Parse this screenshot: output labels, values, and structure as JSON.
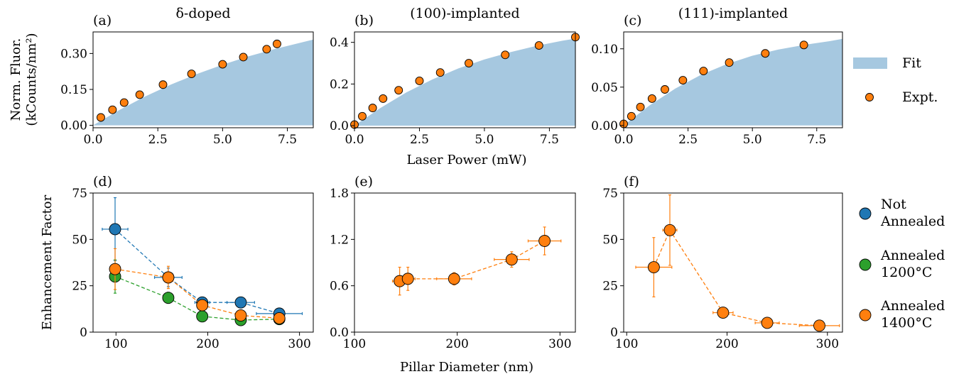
{
  "figure": {
    "shared_xlabel_top": "Laser Power (mW)",
    "shared_xlabel_bottom": "Pillar Diameter (nm)",
    "ylabel_top_line1": "Norm. Fluor.",
    "ylabel_top_line2": "(kCounts/nm²)",
    "ylabel_bottom": "Enhancement Factor",
    "colors": {
      "fit": "#a6c8e0",
      "orange": "#ff7f0e",
      "blue": "#1f77b4",
      "green": "#2ca02c"
    },
    "legend_top": {
      "fit_label": "Fit",
      "expt_label": "Expt."
    },
    "legend_bottom": [
      {
        "line1": "Not",
        "line2": "Annealed",
        "color": "#1f77b4"
      },
      {
        "line1": "Annealed",
        "line2": "1200°C",
        "color": "#2ca02c"
      },
      {
        "line1": "Annealed",
        "line2": "1400°C",
        "color": "#ff7f0e"
      }
    ]
  },
  "chart_data": [
    {
      "panel": "(a)",
      "title": "δ-doped",
      "type": "scatter",
      "xlim": [
        0,
        8.5
      ],
      "ylim": [
        -0.01,
        0.39
      ],
      "xticks": [
        "0.0",
        "2.5",
        "5.0",
        "7.5"
      ],
      "xtick_values": [
        0,
        2.5,
        5.0,
        7.5
      ],
      "yticks": [
        "0.00",
        "0.15",
        "0.30"
      ],
      "ytick_values": [
        0,
        0.15,
        0.3
      ],
      "fit": {
        "x": [
          0,
          1,
          2,
          3,
          4,
          5,
          6,
          7,
          8,
          8.5
        ],
        "y": [
          0,
          0.063,
          0.12,
          0.17,
          0.214,
          0.253,
          0.288,
          0.318,
          0.345,
          0.358
        ]
      },
      "expt": {
        "x": [
          0.3,
          0.75,
          1.2,
          1.8,
          2.7,
          3.8,
          5.0,
          5.8,
          6.7,
          7.1
        ],
        "y": [
          0.033,
          0.065,
          0.095,
          0.128,
          0.17,
          0.215,
          0.255,
          0.285,
          0.318,
          0.34
        ]
      }
    },
    {
      "panel": "(b)",
      "title": "(100)-implanted",
      "type": "scatter",
      "xlim": [
        0,
        8.5
      ],
      "ylim": [
        -0.01,
        0.45
      ],
      "xticks": [
        "0.0",
        "2.5",
        "5.0",
        "7.5"
      ],
      "xtick_values": [
        0,
        2.5,
        5.0,
        7.5
      ],
      "yticks": [
        "0.0",
        "0.2",
        "0.4"
      ],
      "ytick_values": [
        0,
        0.2,
        0.4
      ],
      "fit": {
        "x": [
          0,
          1,
          2,
          3,
          4,
          5,
          6,
          7,
          8,
          8.5
        ],
        "y": [
          0,
          0.085,
          0.16,
          0.222,
          0.275,
          0.318,
          0.353,
          0.383,
          0.408,
          0.418
        ]
      },
      "expt": {
        "x": [
          0.0,
          0.3,
          0.7,
          1.1,
          1.7,
          2.5,
          3.3,
          4.4,
          5.8,
          7.1,
          8.5
        ],
        "y": [
          0.005,
          0.045,
          0.085,
          0.13,
          0.17,
          0.215,
          0.255,
          0.3,
          0.34,
          0.385,
          0.425
        ]
      }
    },
    {
      "panel": "(c)",
      "title": "(111)-implanted",
      "type": "scatter",
      "xlim": [
        0,
        8.5
      ],
      "ylim": [
        -0.003,
        0.122
      ],
      "xticks": [
        "0.0",
        "2.5",
        "5.0",
        "7.5"
      ],
      "xtick_values": [
        0,
        2.5,
        5.0,
        7.5
      ],
      "yticks": [
        "0.00",
        "0.05",
        "0.10"
      ],
      "ytick_values": [
        0,
        0.05,
        0.1
      ],
      "fit": {
        "x": [
          0,
          1,
          2,
          3,
          4,
          5,
          6,
          7,
          8,
          8.5
        ],
        "y": [
          0,
          0.026,
          0.048,
          0.066,
          0.08,
          0.091,
          0.099,
          0.105,
          0.11,
          0.113
        ]
      },
      "expt": {
        "x": [
          0.0,
          0.3,
          0.65,
          1.1,
          1.6,
          2.3,
          3.1,
          4.1,
          5.5,
          7.0
        ],
        "y": [
          0.002,
          0.012,
          0.024,
          0.035,
          0.047,
          0.059,
          0.071,
          0.082,
          0.094,
          0.105
        ]
      }
    },
    {
      "panel": "(d)",
      "title": "",
      "type": "scatter",
      "xlim": [
        75,
        315
      ],
      "ylim": [
        0,
        75
      ],
      "xticks": [
        "100",
        "200",
        "300"
      ],
      "xtick_values": [
        100,
        200,
        300
      ],
      "yticks": [
        "0",
        "25",
        "50",
        "75"
      ],
      "ytick_values": [
        0,
        25,
        50,
        75
      ],
      "series": [
        {
          "name": "Not Annealed",
          "color": "#1f77b4",
          "x": [
            99,
            157,
            194,
            236,
            278
          ],
          "y": [
            55.5,
            29.5,
            16,
            16,
            10
          ],
          "xerr": [
            14,
            15,
            8,
            15,
            25
          ],
          "yerr": [
            17,
            5,
            2,
            2,
            2
          ]
        },
        {
          "name": "Annealed 1200°C",
          "color": "#2ca02c",
          "x": [
            99,
            157,
            194,
            236,
            278
          ],
          "y": [
            30,
            18.5,
            8.5,
            6.5,
            7
          ],
          "xerr": [
            0,
            0,
            0,
            0,
            0
          ],
          "yerr": [
            9,
            3,
            2,
            1.5,
            1
          ]
        },
        {
          "name": "Annealed 1400°C",
          "color": "#ff7f0e",
          "x": [
            99,
            157,
            194,
            236,
            278
          ],
          "y": [
            34,
            29.5,
            14.5,
            9,
            7.5
          ],
          "xerr": [
            0,
            0,
            0,
            0,
            0
          ],
          "yerr": [
            11,
            6,
            2,
            1.5,
            1
          ]
        }
      ]
    },
    {
      "panel": "(e)",
      "title": "",
      "type": "scatter",
      "xlim": [
        100,
        315
      ],
      "ylim": [
        0,
        1.8
      ],
      "xticks": [
        "100",
        "200",
        "300"
      ],
      "xtick_values": [
        100,
        200,
        300
      ],
      "yticks": [
        "0.0",
        "0.6",
        "1.2",
        "1.8"
      ],
      "ytick_values": [
        0,
        0.6,
        1.2,
        1.8
      ],
      "series": [
        {
          "name": "Annealed 1400°C",
          "color": "#ff7f0e",
          "x": [
            144,
            152,
            197,
            253,
            285
          ],
          "y": [
            0.66,
            0.69,
            0.69,
            0.94,
            1.18
          ],
          "xerr": [
            7,
            7,
            17,
            17,
            16
          ],
          "yerr": [
            0.18,
            0.15,
            0.08,
            0.1,
            0.18
          ]
        }
      ]
    },
    {
      "panel": "(f)",
      "title": "",
      "type": "scatter",
      "xlim": [
        97,
        315
      ],
      "ylim": [
        0,
        75
      ],
      "xticks": [
        "100",
        "200",
        "300"
      ],
      "xtick_values": [
        100,
        200,
        300
      ],
      "yticks": [
        "0",
        "25",
        "50",
        "75"
      ],
      "ytick_values": [
        0,
        25,
        50,
        75
      ],
      "series": [
        {
          "name": "Annealed 1400°C",
          "color": "#ff7f0e",
          "x": [
            127,
            143,
            196,
            240,
            292
          ],
          "y": [
            35,
            55,
            10.5,
            5,
            3.5
          ],
          "xerr": [
            18,
            7,
            10,
            12,
            20
          ],
          "yerr": [
            16,
            19,
            1.5,
            1,
            0.8
          ]
        }
      ]
    }
  ]
}
